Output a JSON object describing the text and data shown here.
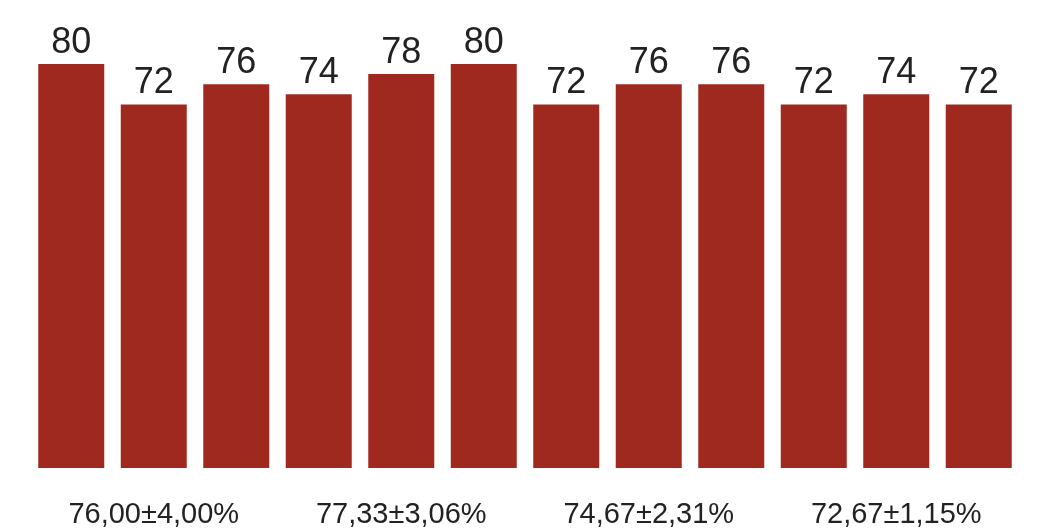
{
  "chart_data": {
    "type": "bar",
    "categories": [
      null,
      "76,00±4,00%",
      null,
      null,
      "77,33±3,06%",
      null,
      null,
      "74,67±2,31%",
      null,
      null,
      "72,67±1,15%",
      null
    ],
    "values": [
      80,
      72,
      76,
      74,
      78,
      80,
      72,
      76,
      76,
      72,
      74,
      72
    ],
    "color": "#a0291f",
    "data_labels": true
  }
}
